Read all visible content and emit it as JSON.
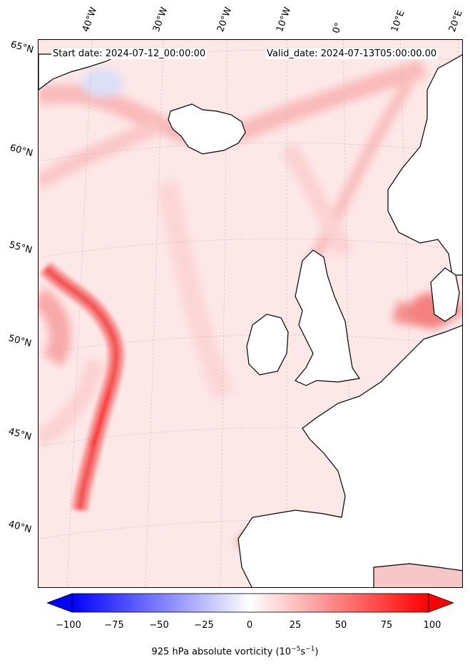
{
  "map": {
    "start_date": "Start date: 2024-07-12_00:00:00",
    "valid_date": "Valid_date: 2024-07-13T05:00:00.00",
    "longitude_labels": [
      "40°W",
      "30°W",
      "20°W",
      "10°W",
      "0°",
      "10°E",
      "20°E"
    ],
    "latitude_labels": [
      "65°N",
      "60°N",
      "55°N",
      "50°N",
      "45°N",
      "40°N"
    ],
    "colors": {
      "land_outline": "#000000",
      "grid": "#b0b0b0",
      "max_positive": "#ff0000",
      "max_negative": "#0000ff",
      "neutral": "#ffffff"
    }
  },
  "colorbar": {
    "min": -100,
    "max": 100,
    "ticks": [
      "−100",
      "−75",
      "−50",
      "−25",
      "0",
      "25",
      "50",
      "75",
      "100"
    ],
    "label": "925 hPa absolute vorticity (10",
    "label_exp1": "−5",
    "label_mid": "s",
    "label_exp2": "−1",
    "label_end": ")"
  }
}
